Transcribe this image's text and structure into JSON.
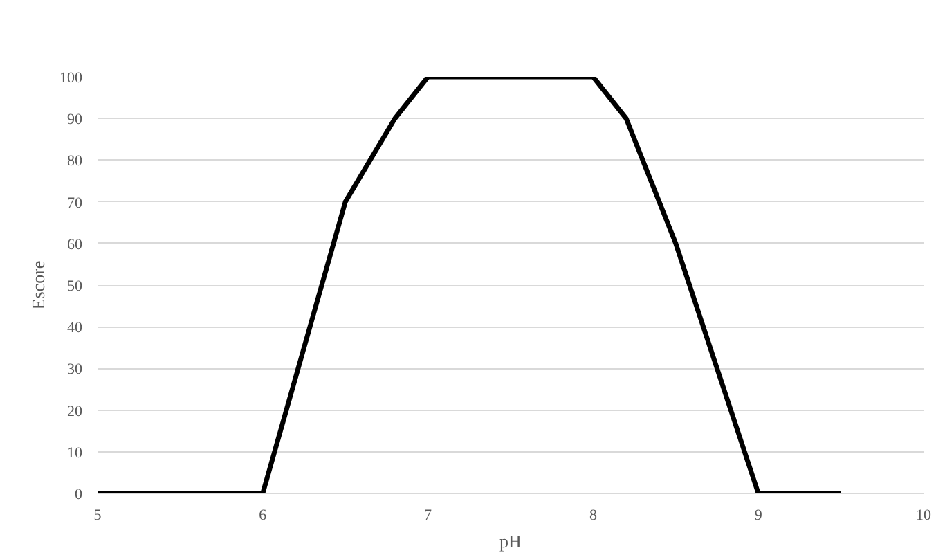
{
  "chart_data": {
    "type": "line",
    "xlabel": "pH",
    "ylabel": "Escore",
    "x": [
      5,
      6,
      6.5,
      6.8,
      7,
      8,
      8.2,
      8.5,
      9,
      9.5
    ],
    "series": [
      {
        "color": "#000000",
        "values": [
          0,
          0,
          70,
          90,
          100,
          100,
          90,
          60,
          0,
          0
        ]
      }
    ],
    "xlim": [
      5,
      10
    ],
    "xticks": [
      5,
      6,
      7,
      8,
      9,
      10
    ],
    "ylim": [
      0,
      100
    ],
    "yticks": [
      0,
      10,
      20,
      30,
      40,
      50,
      60,
      70,
      80,
      90,
      100
    ],
    "grid": "y",
    "marker": "none",
    "line_style": "solid"
  }
}
